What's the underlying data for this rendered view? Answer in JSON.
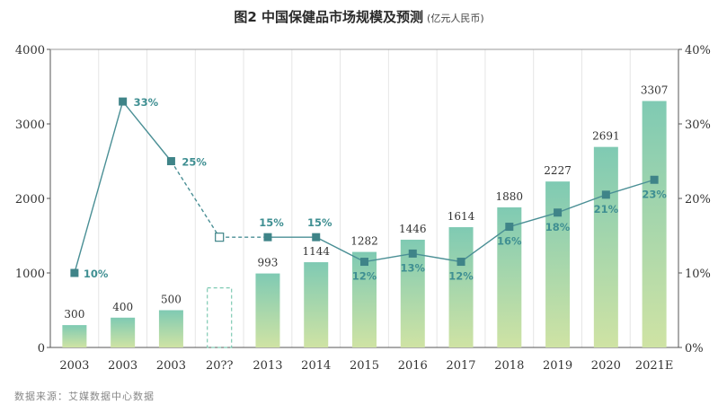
{
  "header": {
    "title": "图2 中国保健品市场规模及预测",
    "unit": "(亿元人民币)"
  },
  "source": "数据来源：艾媒数据中心数据",
  "chart_data": {
    "type": "bar",
    "categories": [
      "2003",
      "2003",
      "2003",
      "20??",
      "2013",
      "2014",
      "2015",
      "2016",
      "2017",
      "2018",
      "2019",
      "2020",
      "2021E"
    ],
    "bar_labels": [
      "300",
      "400",
      "500",
      "",
      "993",
      "1144",
      "1282",
      "1446",
      "1614",
      "1880",
      "2227",
      "2691",
      "3307"
    ],
    "series": [
      {
        "values": [
          300,
          400,
          500,
          800,
          993,
          1144,
          1282,
          1446,
          1614,
          1880,
          2227,
          2691,
          3307
        ],
        "axis": "left",
        "placeholder_index": 3
      },
      {
        "values": [
          10,
          33,
          25,
          15,
          15,
          15,
          12,
          13,
          12,
          16,
          18,
          21,
          23
        ],
        "labels": [
          "10%",
          "33%",
          "25%",
          "",
          "15%",
          "15%",
          "12%",
          "13%",
          "12%",
          "16%",
          "18%",
          "21%",
          "23%"
        ],
        "axis": "right",
        "type": "line",
        "plotted_values": [
          10,
          33,
          25,
          14.8,
          14.8,
          14.8,
          11.5,
          12.6,
          11.5,
          16.2,
          18.1,
          20.5,
          22.5
        ],
        "dashed_segments": [
          [
            2,
            3
          ],
          [
            3,
            4
          ]
        ],
        "hollow_marker_index": 3
      }
    ],
    "ylim": [
      0,
      4000
    ],
    "yticks": [
      "0",
      "1000",
      "2000",
      "3000",
      "4000"
    ],
    "y2lim": [
      0,
      40
    ],
    "y2ticks": [
      "0%",
      "10%",
      "20%",
      "30%",
      "40%"
    ],
    "grid": "vertical",
    "colors": {
      "bar_top": "#7fcab3",
      "bar_bottom": "#cfe3a4",
      "line": "#4a8f95",
      "marker": "#3f8488",
      "label": "#3f8f92",
      "grid": "#e6e6e6"
    }
  }
}
